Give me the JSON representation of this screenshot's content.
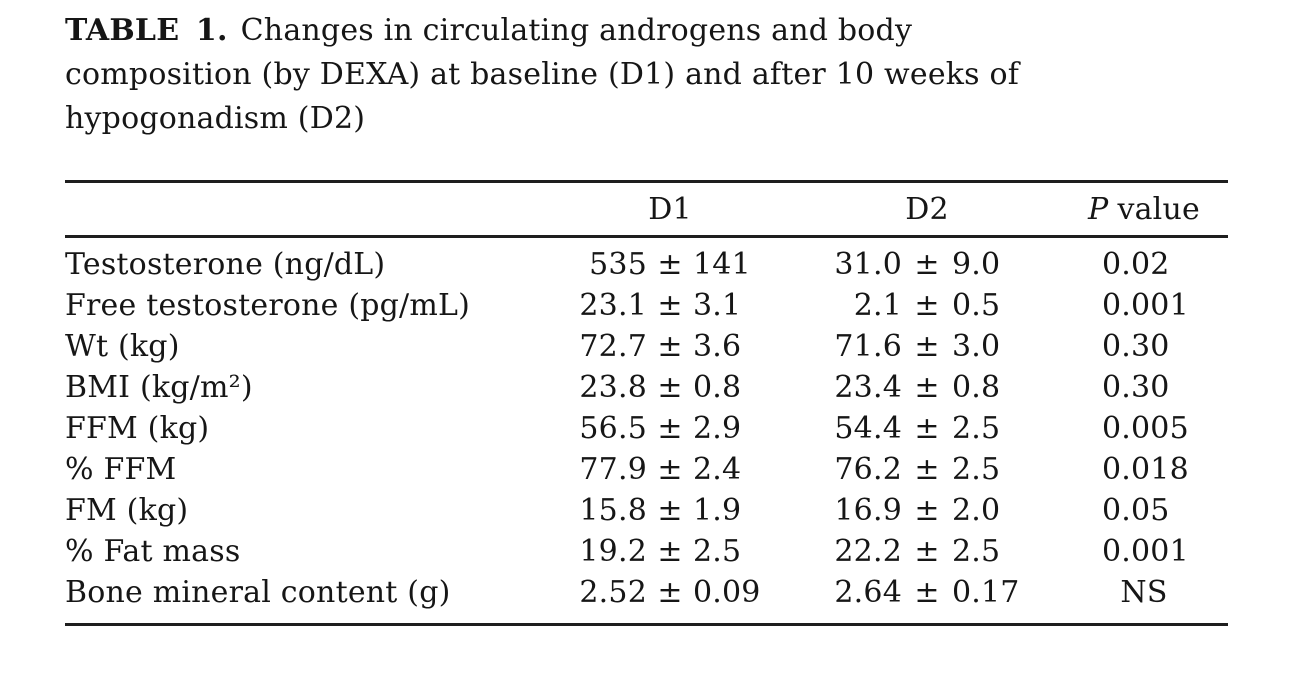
{
  "colors": {
    "ink": "#161616",
    "background": "#ffffff",
    "rule": "#1e1e1e"
  },
  "title": {
    "label": "TABLE 1.",
    "line1_rest": "Changes in circulating androgens and body",
    "line2": "composition (by DEXA) at baseline (D1) and after 10 weeks of",
    "line3": "hypogonadism (D2)"
  },
  "table": {
    "pm": "±",
    "columns": {
      "parameter": "",
      "d1": "D1",
      "d2": "D2",
      "p_italic": "P",
      "p_rest": "value"
    },
    "rows": [
      {
        "label": "Testosterone (ng/dL)",
        "d1_mean": "535",
        "d1_sd": "141",
        "d2_mean": "31.0",
        "d2_sd": "9.0",
        "p": "0.02"
      },
      {
        "label": "Free testosterone (pg/mL)",
        "d1_mean": "23.1",
        "d1_sd": "3.1",
        "d2_mean": "2.1",
        "d2_sd": "0.5",
        "p": "0.001"
      },
      {
        "label": "Wt (kg)",
        "d1_mean": "72.7",
        "d1_sd": "3.6",
        "d2_mean": "71.6",
        "d2_sd": "3.0",
        "p": "0.30"
      },
      {
        "label": "BMI (kg/m²)",
        "d1_mean": "23.8",
        "d1_sd": "0.8",
        "d2_mean": "23.4",
        "d2_sd": "0.8",
        "p": "0.30"
      },
      {
        "label": "FFM (kg)",
        "d1_mean": "56.5",
        "d1_sd": "2.9",
        "d2_mean": "54.4",
        "d2_sd": "2.5",
        "p": "0.005"
      },
      {
        "label": "% FFM",
        "d1_mean": "77.9",
        "d1_sd": "2.4",
        "d2_mean": "76.2",
        "d2_sd": "2.5",
        "p": "0.018"
      },
      {
        "label": "FM (kg)",
        "d1_mean": "15.8",
        "d1_sd": "1.9",
        "d2_mean": "16.9",
        "d2_sd": "2.0",
        "p": "0.05"
      },
      {
        "label": "% Fat mass",
        "d1_mean": "19.2",
        "d1_sd": "2.5",
        "d2_mean": "22.2",
        "d2_sd": "2.5",
        "p": "0.001"
      },
      {
        "label": "Bone mineral content (g)",
        "d1_mean": "2.52",
        "d1_sd": "0.09",
        "d2_mean": "2.64",
        "d2_sd": "0.17",
        "p": "NS"
      }
    ]
  }
}
